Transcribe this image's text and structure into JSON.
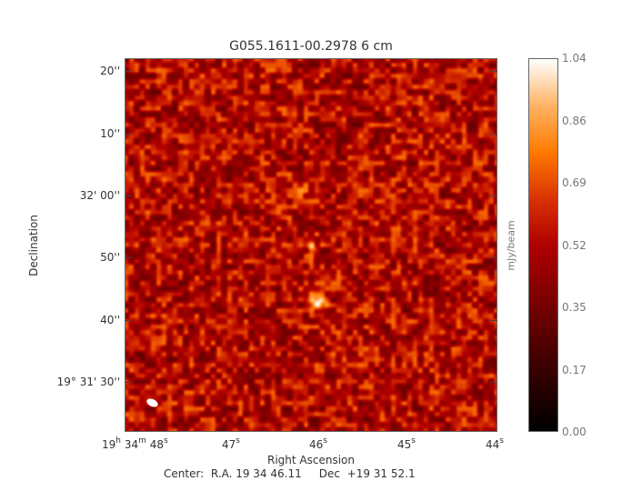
{
  "chart_data": {
    "type": "heatmap",
    "title": "G055.1611-00.2978 6 cm",
    "xlabel": "Right Ascension",
    "ylabel": "Declination",
    "x_ticks": [
      {
        "h": "19",
        "m": "34",
        "s": "48"
      },
      {
        "s": "47"
      },
      {
        "s": "46"
      },
      {
        "s": "45"
      },
      {
        "s": "44"
      }
    ],
    "y_ticks": [
      "20''",
      "10''",
      "32' 00''",
      "50''",
      "40''",
      "19° 31' 30''"
    ],
    "y_ticks_parts": [
      {
        "sec": "20''"
      },
      {
        "sec": "10''"
      },
      {
        "min": "32' 00''"
      },
      {
        "sec": "50''"
      },
      {
        "sec": "40''"
      },
      {
        "deg": "19",
        "rest": "31' 30''"
      }
    ],
    "colorbar": {
      "label": "mJy/beam",
      "ticks": [
        "1.04",
        "0.86",
        "0.69",
        "0.52",
        "0.35",
        "0.17",
        "0.00"
      ],
      "range": [
        0.0,
        1.04
      ],
      "colormap": "heat (black-red-orange-white)"
    },
    "center_text": "Center:  R.A. 19 34 46.11     Dec  +19 31 52.1",
    "beam_color": "#ffffff"
  }
}
